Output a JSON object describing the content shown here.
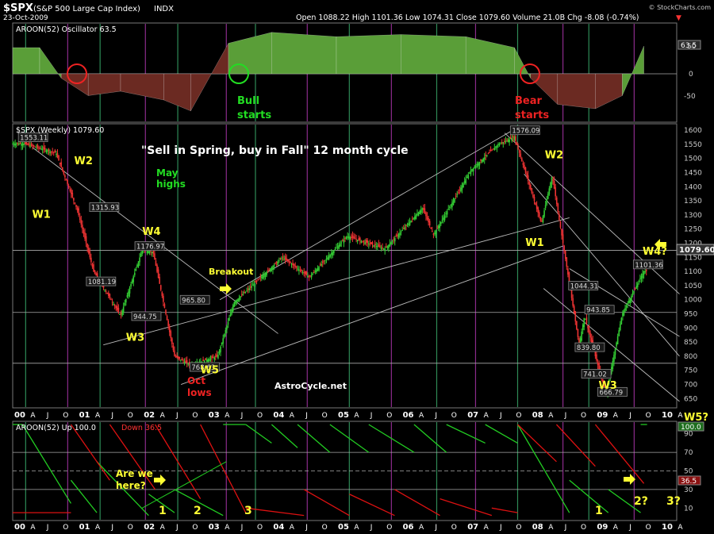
{
  "header": {
    "symbol": "$SPX",
    "name": "(S&P 500 Large Cap Index)",
    "exchange": "INDX",
    "date": "23-Oct-2009",
    "quote": "Open 1088.22  High 1101.36  Low 1074.31  Close 1079.60  Volume 21.0B  Chg -8.08 (-0.74%)",
    "change_marker": "▼",
    "watermark": "© StockCharts.com"
  },
  "top_panel": {
    "legend": "AROON(52) Oscillator 63.5",
    "value_tag": "63.5",
    "ticks": [
      "50",
      "0",
      "-50"
    ],
    "notes": [
      {
        "text": "Bull",
        "color": "#22dd22"
      },
      {
        "text": "starts",
        "color": "#22dd22"
      },
      {
        "text": "Bear",
        "color": "#ee2222"
      },
      {
        "text": "starts",
        "color": "#ee2222"
      }
    ]
  },
  "main_panel": {
    "legend": "$SPX (Weekly) 1079.60",
    "close_tag": "1079.60",
    "y_ticks": [
      "1600",
      "1550",
      "1500",
      "1450",
      "1400",
      "1350",
      "1300",
      "1250",
      "1200",
      "1150",
      "1100",
      "1050",
      "1000",
      "950",
      "900",
      "850",
      "800",
      "750",
      "700",
      "650"
    ],
    "title_note": "\"Sell in Spring, buy in Fall\" 12 month cycle",
    "credit": "AstroCycle.net",
    "price_labels": [
      "1553.11",
      "1315.93",
      "1176.97",
      "1081.19",
      "944.75",
      "965.80",
      "768.63",
      "1576.09",
      "1044.31",
      "943.85",
      "839.80",
      "741.02",
      "666.79",
      "1101.36"
    ],
    "wave_labels": [
      "W2",
      "W1",
      "W4",
      "W3",
      "W5",
      "W2",
      "W1",
      "W4?",
      "W3"
    ],
    "notes": [
      {
        "text": "May",
        "color": "#22dd22"
      },
      {
        "text": "highs",
        "color": "#22dd22"
      },
      {
        "text": "Breakout",
        "color": "#ffff33"
      },
      {
        "text": "Oct",
        "color": "#ee2222"
      },
      {
        "text": "lows",
        "color": "#ee2222"
      }
    ]
  },
  "bottom_panel": {
    "legend_up": "AROON(52) Up 100.0",
    "legend_down": "Down 36.5",
    "tag_up": "100.0",
    "tag_down": "36.5",
    "ticks": [
      "90",
      "70",
      "50",
      "30",
      "10"
    ],
    "note1": "Are we",
    "note2": "here?",
    "counts": [
      "1",
      "2",
      "3",
      "1",
      "2?",
      "3?"
    ],
    "side_note": "W5?"
  },
  "x_axis": {
    "labels": [
      "00",
      "A",
      "J",
      "O",
      "01",
      "A",
      "J",
      "O",
      "02",
      "A",
      "J",
      "O",
      "03",
      "A",
      "J",
      "O",
      "04",
      "A",
      "J",
      "O",
      "05",
      "A",
      "J",
      "O",
      "06",
      "A",
      "J",
      "O",
      "07",
      "A",
      "J",
      "O",
      "08",
      "A",
      "J",
      "O",
      "09",
      "A",
      "J",
      "O",
      "10",
      "A"
    ]
  },
  "colors": {
    "green_fill": "#5a9e38",
    "red_fill": "#6b2a22",
    "aroon_up": "#22cc22",
    "aroon_down": "#dd1111",
    "annot_yellow": "#ffff33",
    "cycle_green": "#2e8b57",
    "cycle_purple": "#8b2b8b"
  },
  "chart_data": [
    {
      "type": "area",
      "title": "AROON(52) Oscillator 63.5",
      "x": [
        "2000-01",
        "2000-06",
        "2000-10",
        "2001-03",
        "2001-09",
        "2002-05",
        "2002-10",
        "2003-05",
        "2004-01",
        "2005-01",
        "2006-01",
        "2007-01",
        "2007-10",
        "2008-01",
        "2008-06",
        "2009-01",
        "2009-06",
        "2009-10"
      ],
      "values": [
        60,
        60,
        -10,
        -50,
        -40,
        -60,
        -85,
        70,
        95,
        85,
        90,
        85,
        60,
        -10,
        -70,
        -80,
        -50,
        63.5
      ],
      "ylim": [
        -100,
        100
      ]
    },
    {
      "type": "line",
      "title": "$SPX (Weekly) 1079.60",
      "series": [
        {
          "name": "$SPX",
          "x": [
            "2000-03",
            "2000-09",
            "2001-01",
            "2001-04",
            "2001-09",
            "2002-01",
            "2002-03",
            "2002-07",
            "2002-10",
            "2003-03",
            "2003-06",
            "2004-03",
            "2004-08",
            "2005-03",
            "2005-10",
            "2006-05",
            "2006-07",
            "2007-02",
            "2007-07",
            "2007-10",
            "2008-03",
            "2008-05",
            "2008-07",
            "2008-10",
            "2008-11",
            "2009-01",
            "2009-03",
            "2009-06",
            "2009-10"
          ],
          "values": [
            1553,
            1520,
            1316,
            1100,
            944,
            1176,
            1170,
            800,
            768,
            800,
            990,
            1150,
            1080,
            1225,
            1180,
            1325,
            1230,
            1460,
            1550,
            1576,
            1270,
            1440,
            1200,
            840,
            943,
            800,
            667,
            950,
            1101
          ]
        }
      ],
      "ylim": [
        620,
        1620
      ]
    },
    {
      "type": "line",
      "title": "AROON(52)",
      "series": [
        {
          "name": "Up",
          "x": [
            "2000-01",
            "2000-10",
            "2001-06",
            "2002-03",
            "2003-06",
            "2004-03",
            "2005-06",
            "2006-06",
            "2007-06",
            "2008-06",
            "2009-05",
            "2009-10"
          ],
          "values": [
            100,
            30,
            10,
            5,
            100,
            95,
            90,
            95,
            95,
            10,
            5,
            100
          ]
        },
        {
          "name": "Down",
          "x": [
            "2000-01",
            "2000-10",
            "2001-06",
            "2002-03",
            "2003-06",
            "2004-03",
            "2005-06",
            "2006-06",
            "2007-06",
            "2008-06",
            "2009-05",
            "2009-10"
          ],
          "values": [
            5,
            100,
            95,
            100,
            10,
            5,
            8,
            10,
            12,
            95,
            90,
            36.5
          ]
        }
      ],
      "ylim": [
        0,
        100
      ]
    }
  ]
}
